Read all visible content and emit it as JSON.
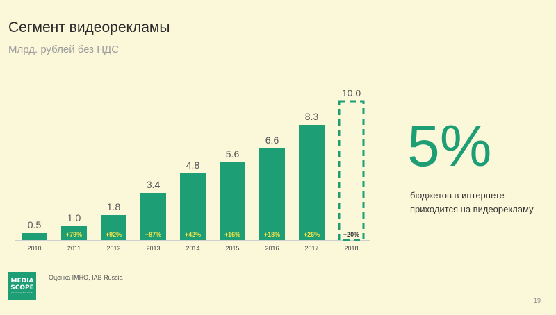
{
  "slide": {
    "title": "Сегмент видеорекламы",
    "subtitle": "Млрд. рублей без НДС",
    "big_value": "5%",
    "side_text": "бюджетов в интернете приходится на видеорекламу",
    "source": "Оценка IMHO, IAB Russia",
    "page_number": "19",
    "logo_text": "MEDIA SCOPE",
    "logo_sub": "measuring the media"
  },
  "colors": {
    "bar": "#1e9e75",
    "growth_label": "#f2e34a",
    "forecast_outline": "#1e9e75",
    "background": "#fbf8da"
  },
  "chart_data": {
    "type": "bar",
    "categories": [
      "2010",
      "2011",
      "2012",
      "2013",
      "2014",
      "2015",
      "2016",
      "2017",
      "2018"
    ],
    "values": [
      0.5,
      1.0,
      1.8,
      3.4,
      4.8,
      5.6,
      6.6,
      8.3,
      10.0
    ],
    "value_labels": [
      "0.5",
      "1.0",
      "1.8",
      "3.4",
      "4.8",
      "5.6",
      "6.6",
      "8.3",
      "10.0"
    ],
    "growth_labels": [
      "",
      "+79%",
      "+92%",
      "+87%",
      "+42%",
      "+16%",
      "+18%",
      "+26%",
      "+20%"
    ],
    "forecast": [
      false,
      false,
      false,
      false,
      false,
      false,
      false,
      false,
      true
    ],
    "ylim": [
      0,
      10.0
    ],
    "grid": false,
    "legend": "none"
  }
}
